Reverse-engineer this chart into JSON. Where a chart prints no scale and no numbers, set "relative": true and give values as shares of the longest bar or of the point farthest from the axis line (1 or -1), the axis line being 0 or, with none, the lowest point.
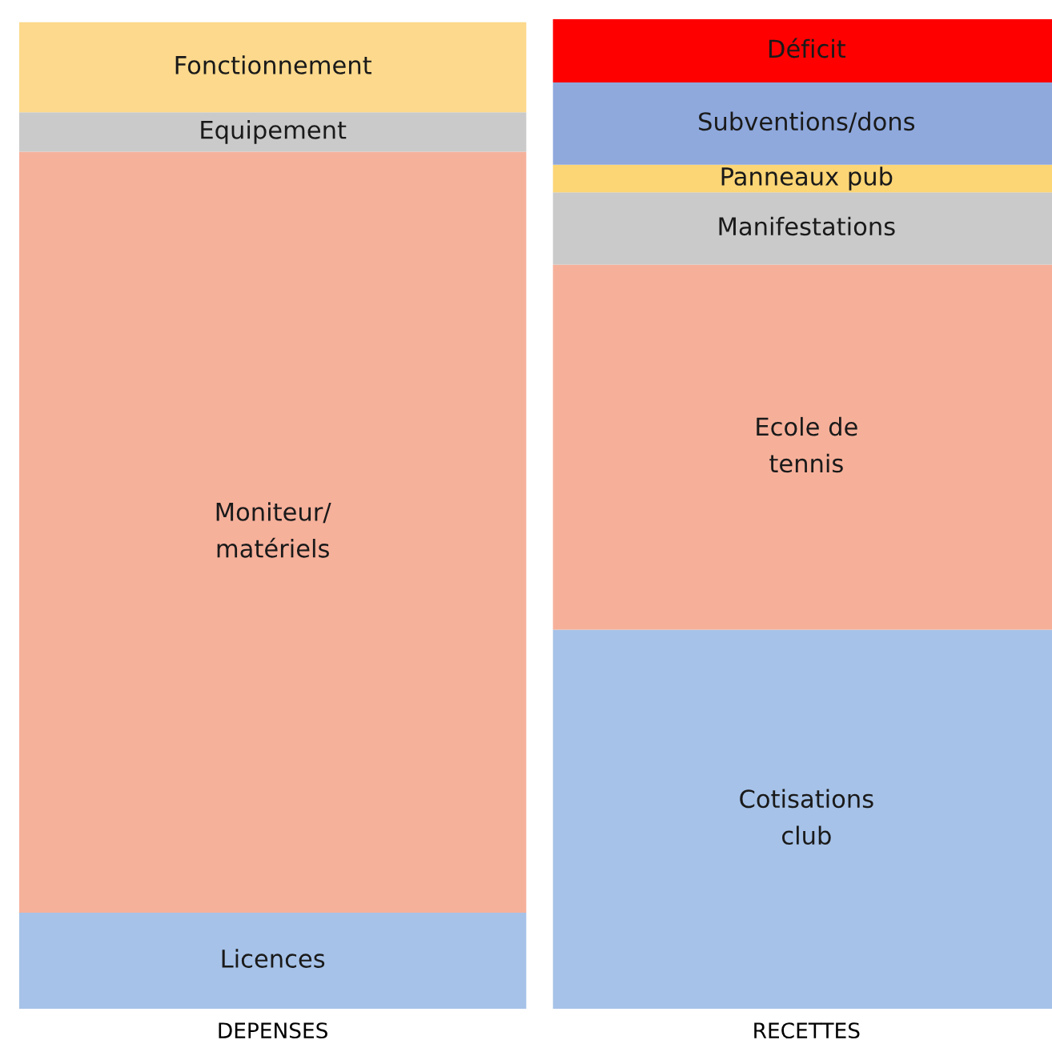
{
  "chart_data": {
    "type": "bar",
    "stacked": true,
    "relative": true,
    "legend": false,
    "grid": false,
    "categories": [
      "DEPENSES",
      "RECETTES"
    ],
    "series": [
      {
        "name": "Licences",
        "color": "#a6c2e8",
        "values": [
          0.097,
          null
        ]
      },
      {
        "name": "Moniteur/\nmatériels",
        "color": "#f6b19b",
        "values": [
          0.769,
          null
        ]
      },
      {
        "name": "Equipement",
        "color": "#cacaca",
        "values": [
          0.04,
          null
        ]
      },
      {
        "name": "Fonctionnement",
        "color": "#fcd98c",
        "values": [
          0.091,
          null
        ]
      },
      {
        "name": "Cotisations\nclub",
        "color": "#a6c2e8",
        "values": [
          null,
          0.383
        ]
      },
      {
        "name": "Ecole de\ntennis",
        "color": "#f6b09a",
        "values": [
          null,
          0.369
        ]
      },
      {
        "name": "Manifestations",
        "color": "#cacaca",
        "values": [
          null,
          0.073
        ]
      },
      {
        "name": "Panneaux pub",
        "color": "#fcd575",
        "values": [
          null,
          0.028
        ]
      },
      {
        "name": "Subventions/dons",
        "color": "#8fa9dd",
        "values": [
          null,
          0.083
        ]
      },
      {
        "name": "Déficit",
        "color": "#ff0000",
        "values": [
          null,
          0.064
        ]
      }
    ]
  }
}
